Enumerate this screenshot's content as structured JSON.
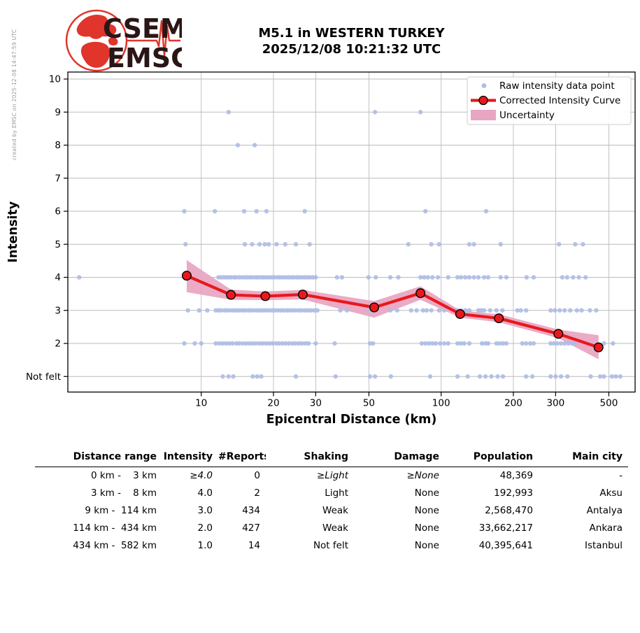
{
  "credit": "created by EMSC on 2025-12-08 14:47:59 UTC",
  "logo": {
    "line1": "CSEM",
    "line2": "EMSC"
  },
  "title": {
    "line1": "M5.1 in WESTERN TURKEY",
    "line2": "2025/12/08 10:21:32 UTC"
  },
  "chart_data": {
    "type": "scatter",
    "title": "M5.1 in WESTERN TURKEY 2025/12/08 10:21:32 UTC",
    "xlabel": "Epicentral Distance (km)",
    "ylabel": "Intensity",
    "x_scale": "log",
    "x_ticks": [
      10,
      20,
      30,
      50,
      100,
      200,
      300,
      500
    ],
    "x_range": [
      2.8,
      640
    ],
    "y_ticks": [
      {
        "v": 10,
        "label": "10"
      },
      {
        "v": 9,
        "label": "9"
      },
      {
        "v": 8,
        "label": "8"
      },
      {
        "v": 7,
        "label": "7"
      },
      {
        "v": 6,
        "label": "6"
      },
      {
        "v": 5,
        "label": "5"
      },
      {
        "v": 4,
        "label": "4"
      },
      {
        "v": 3,
        "label": "3"
      },
      {
        "v": 2,
        "label": "2"
      },
      {
        "v": 1,
        "label": "Not felt"
      }
    ],
    "y_range": [
      0.55,
      10.2
    ],
    "grid": true,
    "legend_position": "upper right",
    "legend": [
      {
        "type": "dot",
        "label": "Raw intensity data point"
      },
      {
        "type": "line",
        "label": "Corrected Intensity Curve"
      },
      {
        "type": "band",
        "label": "Uncertainty"
      }
    ],
    "colors": {
      "raw_point": "#aebde5",
      "curve": "#e8191c",
      "uncertainty": "#e9a6c3",
      "grid": "#bbbbbb"
    },
    "curve": [
      [
        8.7,
        4.05
      ],
      [
        13.3,
        3.47
      ],
      [
        18.5,
        3.43
      ],
      [
        26.5,
        3.48
      ],
      [
        52.6,
        3.09
      ],
      [
        82,
        3.52
      ],
      [
        120,
        2.89
      ],
      [
        174,
        2.76
      ],
      [
        308,
        2.29
      ],
      [
        453,
        1.88
      ]
    ],
    "band_upper": [
      [
        8.7,
        4.52
      ],
      [
        13.3,
        3.63
      ],
      [
        18.5,
        3.57
      ],
      [
        26.5,
        3.62
      ],
      [
        52.6,
        3.28
      ],
      [
        82,
        3.73
      ],
      [
        120,
        3.0
      ],
      [
        174,
        2.88
      ],
      [
        308,
        2.42
      ],
      [
        453,
        2.25
      ]
    ],
    "band_lower": [
      [
        8.7,
        3.55
      ],
      [
        13.3,
        3.32
      ],
      [
        18.5,
        3.31
      ],
      [
        26.5,
        3.33
      ],
      [
        52.6,
        2.78
      ],
      [
        82,
        3.32
      ],
      [
        120,
        2.78
      ],
      [
        174,
        2.64
      ],
      [
        308,
        2.16
      ],
      [
        453,
        1.52
      ]
    ],
    "raw_points": [
      [
        13,
        9
      ],
      [
        53,
        9
      ],
      [
        82,
        9
      ],
      [
        14.2,
        8
      ],
      [
        16.7,
        8
      ],
      [
        8.5,
        6
      ],
      [
        11.4,
        6
      ],
      [
        15.1,
        6
      ],
      [
        17,
        6
      ],
      [
        18.7,
        6
      ],
      [
        27,
        6
      ],
      [
        86,
        6
      ],
      [
        154,
        6
      ],
      [
        8.6,
        5
      ],
      [
        15.2,
        5
      ],
      [
        16.3,
        5
      ],
      [
        17.5,
        5
      ],
      [
        18.4,
        5
      ],
      [
        19.1,
        5
      ],
      [
        20.6,
        5
      ],
      [
        22.4,
        5
      ],
      [
        24.8,
        5
      ],
      [
        28.3,
        5
      ],
      [
        73,
        5
      ],
      [
        91,
        5
      ],
      [
        98,
        5
      ],
      [
        131,
        5
      ],
      [
        137,
        5
      ],
      [
        177,
        5
      ],
      [
        310,
        5
      ],
      [
        362,
        5
      ],
      [
        390,
        5
      ],
      [
        3.1,
        4
      ],
      [
        11.8,
        4
      ],
      [
        12.1,
        4
      ],
      [
        12.4,
        4
      ],
      [
        12.7,
        4
      ],
      [
        13,
        4
      ],
      [
        13.3,
        4
      ],
      [
        13.7,
        4
      ],
      [
        14,
        4
      ],
      [
        14.4,
        4
      ],
      [
        14.8,
        4
      ],
      [
        15.2,
        4
      ],
      [
        15.6,
        4
      ],
      [
        16,
        4
      ],
      [
        16.4,
        4
      ],
      [
        16.9,
        4
      ],
      [
        17.3,
        4
      ],
      [
        17.8,
        4
      ],
      [
        18.2,
        4
      ],
      [
        18.7,
        4
      ],
      [
        19.2,
        4
      ],
      [
        19.7,
        4
      ],
      [
        20.2,
        4
      ],
      [
        20.8,
        4
      ],
      [
        21.3,
        4
      ],
      [
        21.9,
        4
      ],
      [
        22.5,
        4
      ],
      [
        23.1,
        4
      ],
      [
        23.7,
        4
      ],
      [
        24.3,
        4
      ],
      [
        25,
        4
      ],
      [
        25.6,
        4
      ],
      [
        26.3,
        4
      ],
      [
        27,
        4
      ],
      [
        27.7,
        4
      ],
      [
        28.4,
        4
      ],
      [
        29.2,
        4
      ],
      [
        30,
        4
      ],
      [
        36.8,
        4
      ],
      [
        38.6,
        4
      ],
      [
        49.8,
        4
      ],
      [
        53.4,
        4
      ],
      [
        61.4,
        4
      ],
      [
        66.3,
        4
      ],
      [
        82,
        4
      ],
      [
        85,
        4
      ],
      [
        88,
        4
      ],
      [
        92,
        4
      ],
      [
        97,
        4
      ],
      [
        107,
        4
      ],
      [
        117,
        4
      ],
      [
        121,
        4
      ],
      [
        126,
        4
      ],
      [
        131,
        4
      ],
      [
        137,
        4
      ],
      [
        143,
        4
      ],
      [
        151,
        4
      ],
      [
        157,
        4
      ],
      [
        177,
        4
      ],
      [
        187,
        4
      ],
      [
        227,
        4
      ],
      [
        243,
        4
      ],
      [
        320,
        4
      ],
      [
        335,
        4
      ],
      [
        355,
        4
      ],
      [
        375,
        4
      ],
      [
        400,
        4
      ],
      [
        8.8,
        3
      ],
      [
        9.8,
        3
      ],
      [
        10.6,
        3
      ],
      [
        11.5,
        3
      ],
      [
        11.8,
        3
      ],
      [
        12.1,
        3
      ],
      [
        12.5,
        3
      ],
      [
        12.8,
        3
      ],
      [
        13.2,
        3
      ],
      [
        13.6,
        3
      ],
      [
        14,
        3
      ],
      [
        14.4,
        3
      ],
      [
        14.8,
        3
      ],
      [
        15.2,
        3
      ],
      [
        15.7,
        3
      ],
      [
        16.1,
        3
      ],
      [
        16.6,
        3
      ],
      [
        17.1,
        3
      ],
      [
        17.6,
        3
      ],
      [
        18.1,
        3
      ],
      [
        18.6,
        3
      ],
      [
        19.1,
        3
      ],
      [
        19.7,
        3
      ],
      [
        20.3,
        3
      ],
      [
        20.9,
        3
      ],
      [
        21.5,
        3
      ],
      [
        22.1,
        3
      ],
      [
        22.8,
        3
      ],
      [
        23.4,
        3
      ],
      [
        24.1,
        3
      ],
      [
        24.8,
        3
      ],
      [
        25.6,
        3
      ],
      [
        26.3,
        3
      ],
      [
        27.1,
        3
      ],
      [
        27.9,
        3
      ],
      [
        28.7,
        3
      ],
      [
        29.6,
        3
      ],
      [
        30.5,
        3
      ],
      [
        38,
        3
      ],
      [
        40.5,
        3
      ],
      [
        49.8,
        3
      ],
      [
        52.4,
        3
      ],
      [
        61.4,
        3
      ],
      [
        65.6,
        3
      ],
      [
        75,
        3
      ],
      [
        79,
        3
      ],
      [
        84,
        3
      ],
      [
        87,
        3
      ],
      [
        91,
        3
      ],
      [
        98,
        3
      ],
      [
        103,
        3
      ],
      [
        117,
        3
      ],
      [
        121,
        3
      ],
      [
        126,
        3
      ],
      [
        131,
        3
      ],
      [
        143,
        3
      ],
      [
        147,
        3
      ],
      [
        151,
        3
      ],
      [
        160,
        3
      ],
      [
        170,
        3
      ],
      [
        180,
        3
      ],
      [
        208,
        3
      ],
      [
        215,
        3
      ],
      [
        226,
        3
      ],
      [
        286,
        3
      ],
      [
        298,
        3
      ],
      [
        312,
        3
      ],
      [
        327,
        3
      ],
      [
        345,
        3
      ],
      [
        368,
        3
      ],
      [
        385,
        3
      ],
      [
        417,
        3
      ],
      [
        443,
        3
      ],
      [
        8.5,
        2
      ],
      [
        9.4,
        2
      ],
      [
        10,
        2
      ],
      [
        11.5,
        2
      ],
      [
        11.9,
        2
      ],
      [
        12.3,
        2
      ],
      [
        12.7,
        2
      ],
      [
        13.1,
        2
      ],
      [
        13.5,
        2
      ],
      [
        14,
        2
      ],
      [
        14.4,
        2
      ],
      [
        14.9,
        2
      ],
      [
        15.4,
        2
      ],
      [
        15.9,
        2
      ],
      [
        16.4,
        2
      ],
      [
        16.9,
        2
      ],
      [
        17.5,
        2
      ],
      [
        18,
        2
      ],
      [
        18.6,
        2
      ],
      [
        19.2,
        2
      ],
      [
        19.8,
        2
      ],
      [
        20.5,
        2
      ],
      [
        21.1,
        2
      ],
      [
        21.8,
        2
      ],
      [
        22.5,
        2
      ],
      [
        23.2,
        2
      ],
      [
        24,
        2
      ],
      [
        24.7,
        2
      ],
      [
        25.5,
        2
      ],
      [
        26.3,
        2
      ],
      [
        27.2,
        2
      ],
      [
        28,
        2
      ],
      [
        30,
        2
      ],
      [
        36,
        2
      ],
      [
        50.5,
        2
      ],
      [
        52,
        2
      ],
      [
        83,
        2
      ],
      [
        86,
        2
      ],
      [
        89,
        2
      ],
      [
        92,
        2
      ],
      [
        95,
        2
      ],
      [
        99,
        2
      ],
      [
        103,
        2
      ],
      [
        107,
        2
      ],
      [
        117,
        2
      ],
      [
        121,
        2
      ],
      [
        125,
        2
      ],
      [
        131,
        2
      ],
      [
        148,
        2
      ],
      [
        153,
        2
      ],
      [
        157,
        2
      ],
      [
        170,
        2
      ],
      [
        175,
        2
      ],
      [
        181,
        2
      ],
      [
        187,
        2
      ],
      [
        218,
        2
      ],
      [
        226,
        2
      ],
      [
        235,
        2
      ],
      [
        243,
        2
      ],
      [
        286,
        2
      ],
      [
        295,
        2
      ],
      [
        305,
        2
      ],
      [
        316,
        2
      ],
      [
        327,
        2
      ],
      [
        339,
        2
      ],
      [
        351,
        2
      ],
      [
        360,
        2
      ],
      [
        408,
        2
      ],
      [
        477,
        2
      ],
      [
        520,
        2
      ],
      [
        12.3,
        1
      ],
      [
        13,
        1
      ],
      [
        13.6,
        1
      ],
      [
        16.4,
        1
      ],
      [
        17.1,
        1
      ],
      [
        17.8,
        1
      ],
      [
        24.8,
        1
      ],
      [
        36.3,
        1
      ],
      [
        50.5,
        1
      ],
      [
        53,
        1
      ],
      [
        61.7,
        1
      ],
      [
        90,
        1
      ],
      [
        117,
        1
      ],
      [
        129,
        1
      ],
      [
        145,
        1
      ],
      [
        153,
        1
      ],
      [
        162,
        1
      ],
      [
        172,
        1
      ],
      [
        181,
        1
      ],
      [
        226,
        1
      ],
      [
        240,
        1
      ],
      [
        286,
        1
      ],
      [
        300,
        1
      ],
      [
        316,
        1
      ],
      [
        336,
        1
      ],
      [
        420,
        1
      ],
      [
        460,
        1
      ],
      [
        477,
        1
      ],
      [
        515,
        1
      ],
      [
        535,
        1
      ],
      [
        558,
        1
      ]
    ]
  },
  "table": {
    "headers": [
      "Distance range",
      "Intensity",
      "#Reports",
      "Shaking",
      "Damage",
      "Population",
      "Main city"
    ],
    "rows": [
      {
        "cells": [
          "0 km -    3 km",
          "≥4.0",
          "0",
          "≥Light",
          "≥None",
          "48,369",
          "-"
        ],
        "italic": [
          1,
          3,
          4
        ]
      },
      {
        "cells": [
          "3 km -    8 km",
          "4.0",
          "2",
          "Light",
          "None",
          "192,993",
          "Aksu"
        ],
        "italic": []
      },
      {
        "cells": [
          "9 km -  114 km",
          "3.0",
          "434",
          "Weak",
          "None",
          "2,568,470",
          "Antalya"
        ],
        "italic": []
      },
      {
        "cells": [
          "114 km -  434 km",
          "2.0",
          "427",
          "Weak",
          "None",
          "33,662,217",
          "Ankara"
        ],
        "italic": []
      },
      {
        "cells": [
          "434 km -  582 km",
          "1.0",
          "14",
          "Not felt",
          "None",
          "40,395,641",
          "Istanbul"
        ],
        "italic": []
      }
    ]
  }
}
